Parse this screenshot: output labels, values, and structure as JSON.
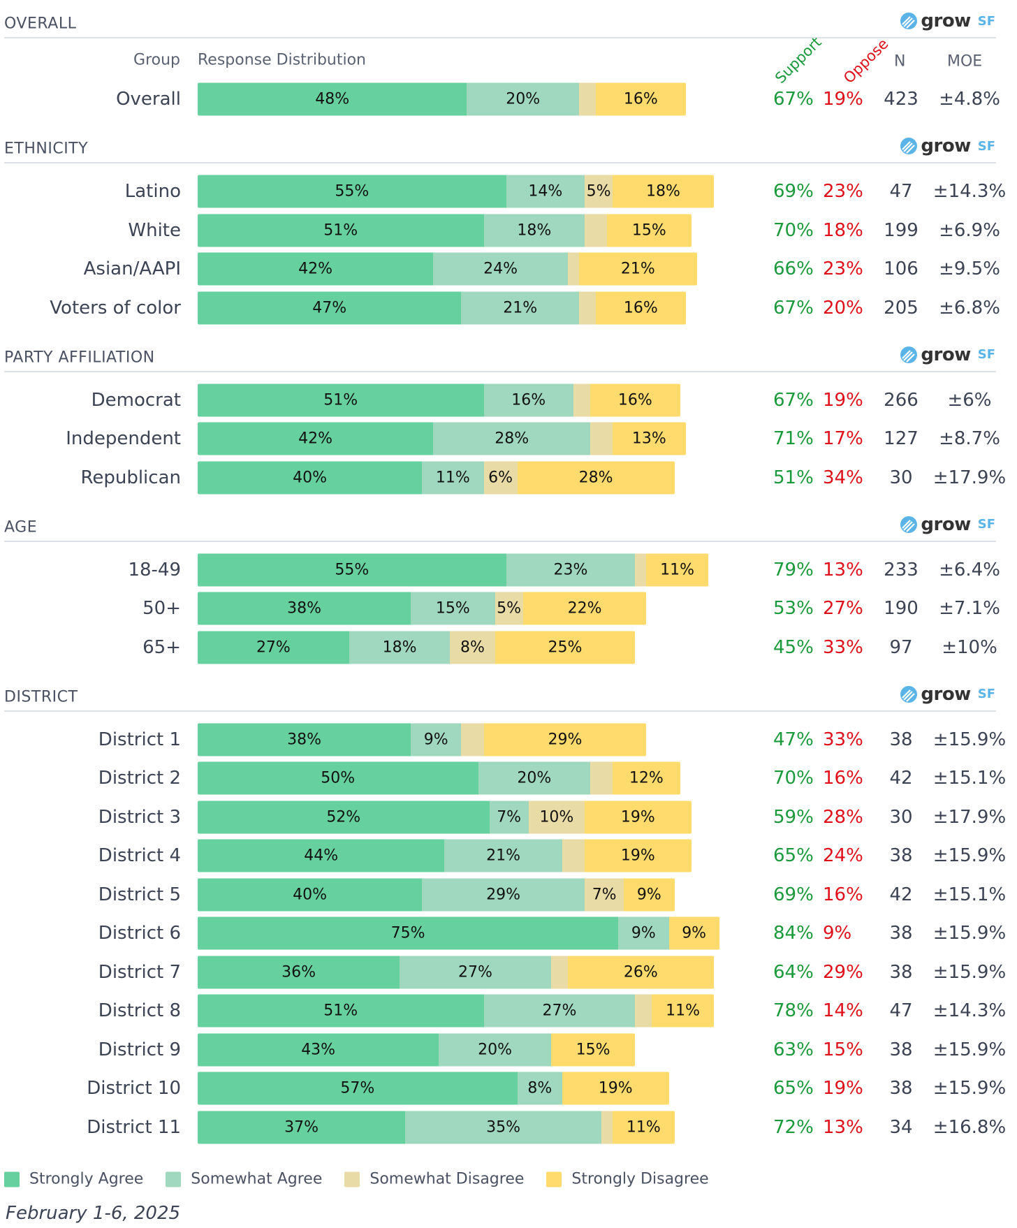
{
  "colors": {
    "strongly_agree": "#66d19e",
    "somewhat_agree": "#a0d8bf",
    "somewhat_disagree": "#e8dba6",
    "strongly_disagree": "#ffdb6e",
    "support": "#1a9a3a",
    "oppose": "#e0101a"
  },
  "logo": {
    "word": "grow",
    "suffix": "SF"
  },
  "columns": {
    "group": "Group",
    "distribution": "Response Distribution",
    "support": "Support",
    "oppose": "Oppose",
    "n": "N",
    "moe": "MOE"
  },
  "chart_data": {
    "type": "bar",
    "stacked": true,
    "orientation": "horizontal",
    "series_names": [
      "Strongly Agree",
      "Somewhat Agree",
      "Somewhat Disagree",
      "Strongly Disagree"
    ],
    "sections": [
      {
        "title": "OVERALL",
        "rows": [
          {
            "label": "Overall",
            "values": [
              48,
              20,
              3,
              16
            ],
            "support": "67%",
            "oppose": "19%",
            "n": "423",
            "moe": "±4.8%"
          }
        ]
      },
      {
        "title": "ETHNICITY",
        "rows": [
          {
            "label": "Latino",
            "values": [
              55,
              14,
              5,
              18
            ],
            "support": "69%",
            "oppose": "23%",
            "n": "47",
            "moe": "±14.3%"
          },
          {
            "label": "White",
            "values": [
              51,
              18,
              4,
              15
            ],
            "support": "70%",
            "oppose": "18%",
            "n": "199",
            "moe": "±6.9%"
          },
          {
            "label": "Asian/AAPI",
            "values": [
              42,
              24,
              2,
              21
            ],
            "support": "66%",
            "oppose": "23%",
            "n": "106",
            "moe": "±9.5%"
          },
          {
            "label": "Voters of color",
            "values": [
              47,
              21,
              3,
              16
            ],
            "support": "67%",
            "oppose": "20%",
            "n": "205",
            "moe": "±6.8%"
          }
        ]
      },
      {
        "title": "PARTY AFFILIATION",
        "rows": [
          {
            "label": "Democrat",
            "values": [
              51,
              16,
              3,
              16
            ],
            "support": "67%",
            "oppose": "19%",
            "n": "266",
            "moe": "±6%"
          },
          {
            "label": "Independent",
            "values": [
              42,
              28,
              4,
              13
            ],
            "support": "71%",
            "oppose": "17%",
            "n": "127",
            "moe": "±8.7%"
          },
          {
            "label": "Republican",
            "values": [
              40,
              11,
              6,
              28
            ],
            "support": "51%",
            "oppose": "34%",
            "n": "30",
            "moe": "±17.9%"
          }
        ]
      },
      {
        "title": "AGE",
        "rows": [
          {
            "label": "18-49",
            "values": [
              55,
              23,
              2,
              11
            ],
            "support": "79%",
            "oppose": "13%",
            "n": "233",
            "moe": "±6.4%"
          },
          {
            "label": "50+",
            "values": [
              38,
              15,
              5,
              22
            ],
            "support": "53%",
            "oppose": "27%",
            "n": "190",
            "moe": "±7.1%"
          },
          {
            "label": "65+",
            "values": [
              27,
              18,
              8,
              25
            ],
            "support": "45%",
            "oppose": "33%",
            "n": "97",
            "moe": "±10%"
          }
        ]
      },
      {
        "title": "DISTRICT",
        "rows": [
          {
            "label": "District 1",
            "values": [
              38,
              9,
              4,
              29
            ],
            "support": "47%",
            "oppose": "33%",
            "n": "38",
            "moe": "±15.9%"
          },
          {
            "label": "District 2",
            "values": [
              50,
              20,
              4,
              12
            ],
            "support": "70%",
            "oppose": "16%",
            "n": "42",
            "moe": "±15.1%"
          },
          {
            "label": "District 3",
            "values": [
              52,
              7,
              10,
              19
            ],
            "support": "59%",
            "oppose": "28%",
            "n": "30",
            "moe": "±17.9%"
          },
          {
            "label": "District 4",
            "values": [
              44,
              21,
              4,
              19
            ],
            "support": "65%",
            "oppose": "24%",
            "n": "38",
            "moe": "±15.9%"
          },
          {
            "label": "District 5",
            "values": [
              40,
              29,
              7,
              9
            ],
            "support": "69%",
            "oppose": "16%",
            "n": "42",
            "moe": "±15.1%"
          },
          {
            "label": "District 6",
            "values": [
              75,
              9,
              0,
              9
            ],
            "support": "84%",
            "oppose": "9%",
            "n": "38",
            "moe": "±15.9%"
          },
          {
            "label": "District 7",
            "values": [
              36,
              27,
              3,
              26
            ],
            "support": "64%",
            "oppose": "29%",
            "n": "38",
            "moe": "±15.9%"
          },
          {
            "label": "District 8",
            "values": [
              51,
              27,
              3,
              11
            ],
            "support": "78%",
            "oppose": "14%",
            "n": "47",
            "moe": "±14.3%"
          },
          {
            "label": "District 9",
            "values": [
              43,
              20,
              0,
              15
            ],
            "support": "63%",
            "oppose": "15%",
            "n": "38",
            "moe": "±15.9%"
          },
          {
            "label": "District 10",
            "values": [
              57,
              8,
              0,
              19
            ],
            "support": "65%",
            "oppose": "19%",
            "n": "38",
            "moe": "±15.9%"
          },
          {
            "label": "District 11",
            "values": [
              37,
              35,
              2,
              11
            ],
            "support": "72%",
            "oppose": "13%",
            "n": "34",
            "moe": "±16.8%"
          }
        ]
      }
    ]
  },
  "legend": [
    "Strongly Agree",
    "Somewhat Agree",
    "Somewhat Disagree",
    "Strongly Disagree"
  ],
  "date": "February 1-6, 2025"
}
